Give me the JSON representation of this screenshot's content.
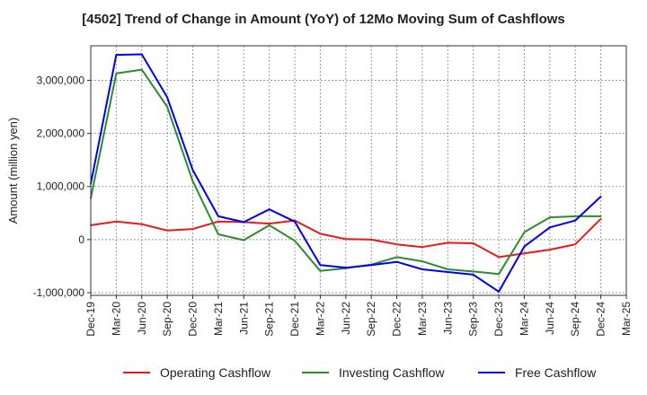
{
  "chart_data": {
    "type": "line",
    "title": "[4502]  Trend of Change in Amount (YoY) of 12Mo Moving Sum of Cashflows",
    "xlabel": "",
    "ylabel": "Amount (million yen)",
    "ylim": [
      -1050000,
      3650000
    ],
    "yticks": [
      -1000000,
      0,
      1000000,
      2000000,
      3000000
    ],
    "ytick_labels": [
      "-1,000,000",
      "0",
      "1,000,000",
      "2,000,000",
      "3,000,000"
    ],
    "categories": [
      "Dec-19",
      "Mar-20",
      "Jun-20",
      "Sep-20",
      "Dec-20",
      "Mar-21",
      "Jun-21",
      "Sep-21",
      "Dec-21",
      "Mar-22",
      "Jun-22",
      "Sep-22",
      "Dec-22",
      "Mar-23",
      "Jun-23",
      "Sep-23",
      "Dec-23",
      "Mar-24",
      "Jun-24",
      "Sep-24",
      "Dec-24",
      "Mar-25"
    ],
    "grid": true,
    "legend": "bottom",
    "series": [
      {
        "name": "Operating Cashflow",
        "color": "#e41a1c",
        "values": [
          270000,
          340000,
          290000,
          170000,
          200000,
          340000,
          330000,
          300000,
          360000,
          110000,
          10000,
          0,
          -90000,
          -140000,
          -60000,
          -70000,
          -330000,
          -260000,
          -190000,
          -90000,
          390000,
          null
        ]
      },
      {
        "name": "Investing Cashflow",
        "color": "#2e8b2e",
        "values": [
          780000,
          3130000,
          3200000,
          2500000,
          1100000,
          100000,
          -10000,
          270000,
          -20000,
          -590000,
          -540000,
          -470000,
          -330000,
          -410000,
          -560000,
          -600000,
          -650000,
          140000,
          420000,
          440000,
          440000,
          null
        ]
      },
      {
        "name": "Free Cashflow",
        "color": "#0000ee",
        "values": [
          1050000,
          3480000,
          3490000,
          2680000,
          1310000,
          440000,
          330000,
          570000,
          340000,
          -480000,
          -530000,
          -480000,
          -420000,
          -560000,
          -610000,
          -660000,
          -980000,
          -130000,
          230000,
          360000,
          810000,
          null
        ]
      }
    ]
  }
}
